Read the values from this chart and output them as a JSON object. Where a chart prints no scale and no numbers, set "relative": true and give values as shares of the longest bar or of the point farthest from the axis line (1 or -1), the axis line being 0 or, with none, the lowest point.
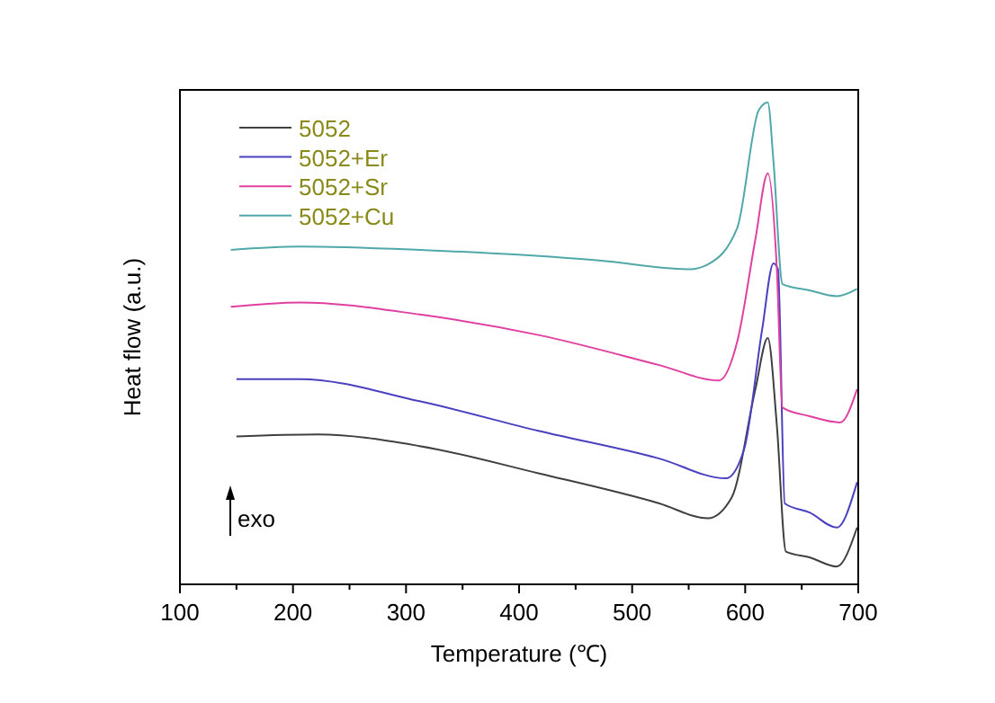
{
  "chart_data": {
    "type": "line",
    "relative": true,
    "xlabel": "Temperature (℃)",
    "ylabel": "Heat flow (a.u.)",
    "annotations": [
      "exo"
    ],
    "legend": "top left",
    "grid": false,
    "line_style": "solid",
    "xlim": [
      100,
      700
    ],
    "xticks": [
      100,
      {
        "value": 150,
        "label": null
      },
      200,
      {
        "value": 250,
        "label": null
      },
      300,
      {
        "value": 350,
        "label": null
      },
      400,
      {
        "value": 450,
        "label": null
      },
      500,
      {
        "value": 550,
        "label": null
      },
      600,
      {
        "value": 650,
        "label": null
      },
      700
    ],
    "series": [
      {
        "name": "5052",
        "color": "#404040",
        "x": [
          150,
          222,
          312,
          418,
          524,
          567,
          588,
          609,
          620,
          628,
          636,
          657,
          681,
          699
        ],
        "values": [
          0.307,
          0.311,
          0.287,
          0.23,
          0.168,
          0.137,
          0.18,
          0.405,
          0.511,
          0.33,
          0.068,
          0.056,
          0.037,
          0.118
        ]
      },
      {
        "name": "5052+Er",
        "color": "#4a40c0",
        "x": [
          150,
          206,
          312,
          418,
          524,
          583,
          599,
          615,
          625,
          629,
          635,
          657,
          681,
          699
        ],
        "values": [
          0.426,
          0.426,
          0.38,
          0.318,
          0.261,
          0.22,
          0.28,
          0.529,
          0.666,
          0.654,
          0.168,
          0.149,
          0.118,
          0.212
        ]
      },
      {
        "name": "5052+Sr",
        "color": "#e040a0",
        "x": [
          145,
          206,
          312,
          418,
          524,
          577,
          593,
          609,
          620,
          628,
          633,
          657,
          684,
          699
        ],
        "values": [
          0.576,
          0.585,
          0.56,
          0.517,
          0.455,
          0.423,
          0.504,
          0.716,
          0.853,
          0.654,
          0.367,
          0.349,
          0.336,
          0.405
        ]
      },
      {
        "name": "5052+Cu",
        "color": "#50a8a8",
        "x": [
          145,
          206,
          312,
          471,
          551,
          567,
          593,
          612,
          620,
          625,
          633,
          657,
          681,
          699
        ],
        "values": [
          0.694,
          0.701,
          0.694,
          0.672,
          0.654,
          0.664,
          0.74,
          0.984,
          1,
          0.878,
          0.623,
          0.61,
          0.598,
          0.613
        ]
      }
    ]
  }
}
